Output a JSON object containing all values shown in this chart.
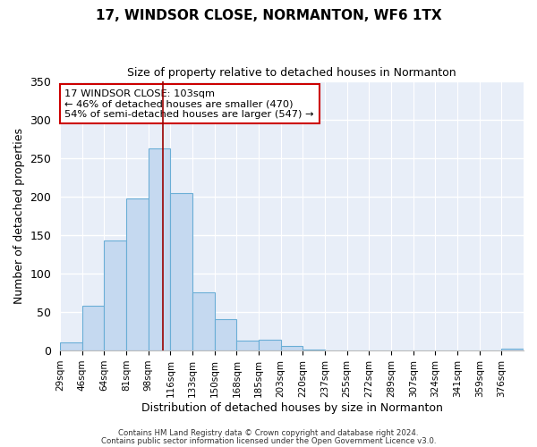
{
  "title": "17, WINDSOR CLOSE, NORMANTON, WF6 1TX",
  "subtitle": "Size of property relative to detached houses in Normanton",
  "xlabel": "Distribution of detached houses by size in Normanton",
  "ylabel": "Number of detached properties",
  "bin_labels": [
    "29sqm",
    "46sqm",
    "64sqm",
    "81sqm",
    "98sqm",
    "116sqm",
    "133sqm",
    "150sqm",
    "168sqm",
    "185sqm",
    "203sqm",
    "220sqm",
    "237sqm",
    "255sqm",
    "272sqm",
    "289sqm",
    "307sqm",
    "324sqm",
    "341sqm",
    "359sqm",
    "376sqm"
  ],
  "bar_heights": [
    10,
    58,
    143,
    198,
    263,
    204,
    75,
    41,
    13,
    14,
    6,
    1,
    0,
    0,
    0,
    0,
    0,
    0,
    0,
    0,
    2
  ],
  "bar_color": "#c5d9f0",
  "bar_edge_color": "#6aaed6",
  "ylim": [
    0,
    350
  ],
  "red_line_x": 4.65,
  "annotation_text": "17 WINDSOR CLOSE: 103sqm\n← 46% of detached houses are smaller (470)\n54% of semi-detached houses are larger (547) →",
  "annotation_box_color": "white",
  "annotation_box_edge_color": "#cc0000",
  "footer_line1": "Contains HM Land Registry data © Crown copyright and database right 2024.",
  "footer_line2": "Contains public sector information licensed under the Open Government Licence v3.0.",
  "background_color": "#ffffff",
  "plot_background_color": "#e8eef8"
}
